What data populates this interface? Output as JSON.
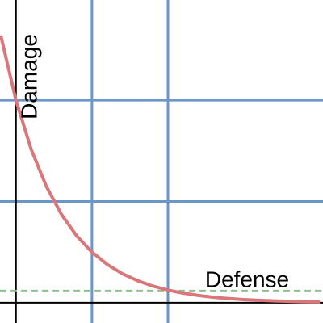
{
  "chart_data": {
    "type": "line",
    "x_label": "Defense",
    "y_label": "Damage",
    "x": [
      -0.2,
      0,
      0.2,
      0.4,
      0.6,
      0.8,
      1,
      1.2,
      1.4,
      1.6,
      1.8,
      2,
      2.2,
      2.4,
      2.6,
      2.8,
      3,
      3.2,
      3.4,
      3.6,
      3.8,
      4
    ],
    "series": [
      {
        "color": "#d9777a",
        "values": [
          2.64,
          2,
          1.516,
          1.149,
          0.871,
          0.66,
          0.5,
          0.379,
          0.287,
          0.218,
          0.165,
          0.125,
          0.095,
          0.072,
          0.054,
          0.041,
          0.031,
          0.024,
          0.018,
          0.014,
          0.01,
          0.008
        ]
      }
    ],
    "xlim": [
      -0.21,
      4.04
    ],
    "ylim": [
      -0.2,
      2.99
    ],
    "xticks": [
      1,
      2
    ],
    "yticks": [
      1,
      2
    ],
    "grid": true,
    "grid_color": "#6a96c9",
    "reference_line": {
      "value": 0.12,
      "color": "#8cc08c"
    }
  }
}
